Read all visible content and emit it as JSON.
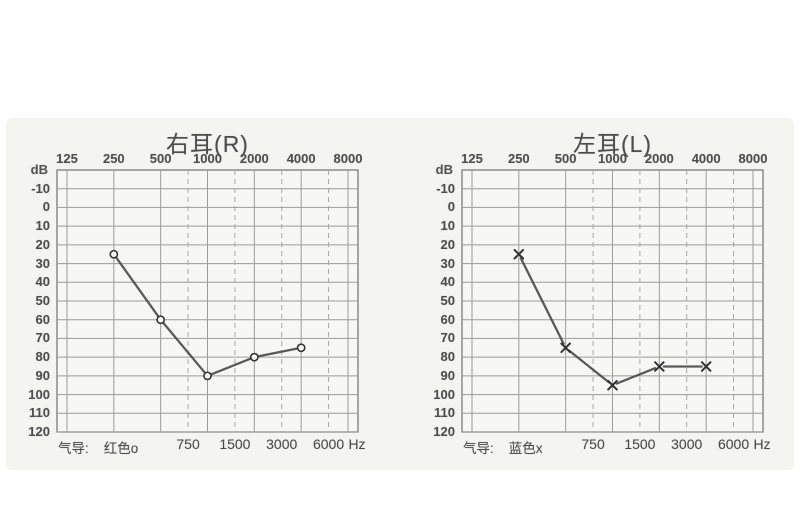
{
  "page": {
    "background": "#ffffff",
    "photo_background": "#f4f4f1"
  },
  "colors": {
    "grid": "#9b9b9b",
    "dashed_grid": "#a8a8a8",
    "chart_border": "#7b7b7b",
    "plot_fill": "#f7f7f4",
    "series_line": "#4a4a4a",
    "marker": "#333333",
    "text": "#4a4a4a"
  },
  "axis": {
    "db_label": "dB",
    "hz_label": "Hz",
    "top_freq_ticks": [
      "125",
      "250",
      "500",
      "1000",
      "2000",
      "4000",
      "8000"
    ],
    "bottom_freq_ticks": [
      "750",
      "1500",
      "3000",
      "6000"
    ],
    "db_ticks": [
      "-10",
      "0",
      "10",
      "20",
      "30",
      "40",
      "50",
      "60",
      "70",
      "80",
      "90",
      "100",
      "110",
      "120"
    ],
    "db_range": [
      -20,
      120
    ]
  },
  "chart_data": [
    {
      "type": "line",
      "ear": "right",
      "title": "右耳(R)",
      "marker": "circle",
      "legend": {
        "label": "气导:",
        "value": "红色o"
      },
      "x_hz": [
        250,
        500,
        1000,
        2000,
        4000
      ],
      "thresholds_db": [
        25,
        60,
        90,
        80,
        75
      ],
      "xlabel": "Hz",
      "ylabel": "dB",
      "x_ticks": [
        125,
        250,
        500,
        1000,
        2000,
        4000,
        8000
      ],
      "x_scale": "log",
      "ylim": [
        -20,
        120
      ],
      "y_inverted": true,
      "grid": true,
      "legend_position": "bottom-left"
    },
    {
      "type": "line",
      "ear": "left",
      "title": "左耳(L)",
      "marker": "x",
      "legend": {
        "label": "气导:",
        "value": "蓝色x"
      },
      "x_hz": [
        250,
        500,
        1000,
        2000,
        4000
      ],
      "thresholds_db": [
        25,
        75,
        95,
        85,
        85
      ],
      "xlabel": "Hz",
      "ylabel": "dB",
      "x_ticks": [
        125,
        250,
        500,
        1000,
        2000,
        4000,
        8000
      ],
      "x_scale": "log",
      "ylim": [
        -20,
        120
      ],
      "y_inverted": true,
      "grid": true,
      "legend_position": "bottom-left"
    }
  ]
}
